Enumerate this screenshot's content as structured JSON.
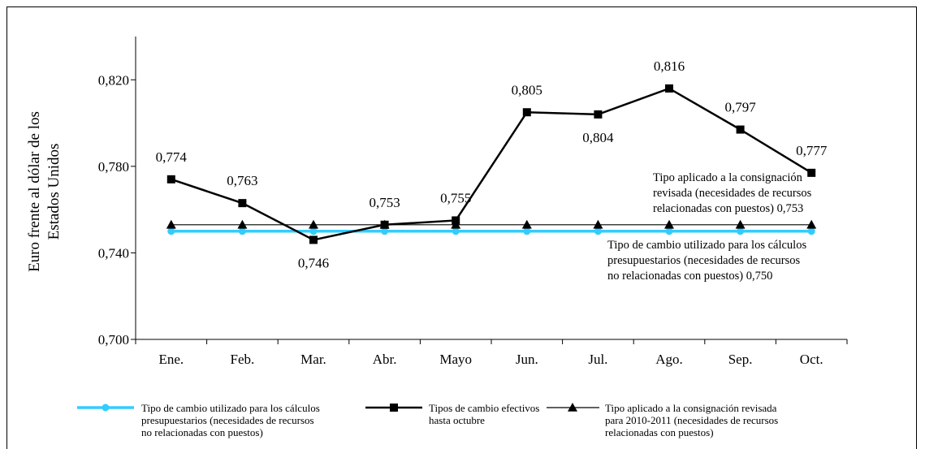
{
  "chart_data": {
    "type": "line",
    "categories": [
      "Ene.",
      "Feb.",
      "Mar.",
      "Abr.",
      "Mayo",
      "Jun.",
      "Jul.",
      "Ago.",
      "Sep.",
      "Oct."
    ],
    "ylabel": "Euro frente al dólar de los Estados Unidos",
    "ylabel_lines": [
      "Euro frente al dólar de los",
      "Estados Unidos"
    ],
    "ylim": [
      0.7,
      0.84
    ],
    "yticks": [
      0.7,
      0.74,
      0.78,
      0.82
    ],
    "ytick_labels": [
      "0,700",
      "0,740",
      "0,780",
      "0,820"
    ],
    "grid": false,
    "legend_position": "bottom",
    "series": [
      {
        "name": "Tipo de cambio utilizado para los cálculos presupuestarios (necesidades de recursos no relacionadas con puestos)",
        "color": "#33ccff",
        "marker": "circle",
        "values": [
          0.75,
          0.75,
          0.75,
          0.75,
          0.75,
          0.75,
          0.75,
          0.75,
          0.75,
          0.75
        ]
      },
      {
        "name": "Tipos de cambio efectivos hasta octubre",
        "color": "#000000",
        "marker": "square",
        "values": [
          0.774,
          0.763,
          0.746,
          0.753,
          0.755,
          0.805,
          0.804,
          0.816,
          0.797,
          0.777
        ],
        "labels": [
          "0,774",
          "0,763",
          "0,746",
          "0,753",
          "0,755",
          "0,805",
          "0,804",
          "0,816",
          "0,797",
          "0,777"
        ]
      },
      {
        "name": "Tipo aplicado a la consignación revisada para 2010-2011 (necesidades de recursos relacionadas con puestos)",
        "color": "#000000",
        "marker": "triangle",
        "values": [
          0.753,
          0.753,
          0.753,
          0.753,
          0.753,
          0.753,
          0.753,
          0.753,
          0.753,
          0.753
        ]
      }
    ],
    "annotations": [
      "Tipo aplicado a la consignación revisada (necesidades de recursos relacionadas con puestos) 0,753",
      "Tipo de cambio utilizado para los cálculos presupuestarios (necesidades de recursos no relacionadas con puestos) 0,750"
    ]
  },
  "annotation_lines": {
    "posts": [
      "Tipo aplicado a la consignación",
      "revisada (necesidades de recursos",
      "relacionadas con puestos) 0,753"
    ],
    "budget": [
      "Tipo de cambio utilizado para los cálculos",
      "presupuestarios (necesidades de recursos",
      "no relacionadas con puestos) 0,750"
    ]
  },
  "legend": {
    "budget_lines": [
      "Tipo de cambio utilizado para los cálculos",
      "presupuestarios (necesidades de recursos",
      "no relacionadas con puestos)"
    ],
    "actual_lines": [
      "Tipos de cambio efectivos",
      "hasta octubre"
    ],
    "posts_lines": [
      "Tipo aplicado a la consignación revisada",
      "para 2010-2011 (necesidades de recursos",
      "relacionadas con puestos)"
    ]
  }
}
